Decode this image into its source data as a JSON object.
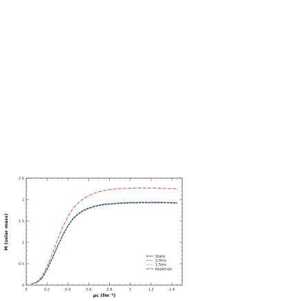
{
  "chart_data": {
    "type": "line",
    "xlabel": "ρc (fm⁻³)",
    "ylabel": "M (solar mass)",
    "xlim": [
      0,
      1.5
    ],
    "ylim": [
      0,
      2.5
    ],
    "xticks": [
      "0",
      "0.2",
      "0.4",
      "0.6",
      "0.8",
      "1",
      "1.2",
      "1.4"
    ],
    "yticks": [
      "0",
      "0.5",
      "1",
      "1.5",
      "2",
      "2.5"
    ],
    "grid": false,
    "legend_position": "bottom-right",
    "series": [
      {
        "name": "Static",
        "color": "#1a1a1a",
        "dash": "3,1.5",
        "x": [
          0.05,
          0.1,
          0.15,
          0.2,
          0.25,
          0.3,
          0.35,
          0.4,
          0.45,
          0.5,
          0.55,
          0.6,
          0.65,
          0.7,
          0.75,
          0.8,
          0.85,
          0.9,
          0.95,
          1.0,
          1.05,
          1.1,
          1.15,
          1.2,
          1.25,
          1.3,
          1.35,
          1.4,
          1.45
        ],
        "y": [
          0.03,
          0.06,
          0.16,
          0.36,
          0.62,
          0.9,
          1.16,
          1.38,
          1.55,
          1.66,
          1.74,
          1.79,
          1.83,
          1.86,
          1.88,
          1.89,
          1.9,
          1.91,
          1.915,
          1.92,
          1.92,
          1.925,
          1.925,
          1.925,
          1.925,
          1.925,
          1.925,
          1.92,
          1.915
        ]
      },
      {
        "name": "2.0ms",
        "color": "#1f3d99",
        "dash": "1.2,1.2",
        "x": [
          0.05,
          0.1,
          0.15,
          0.2,
          0.25,
          0.3,
          0.35,
          0.4,
          0.45,
          0.5,
          0.55,
          0.6,
          0.65,
          0.7,
          0.75,
          0.8,
          0.85,
          0.9,
          0.95,
          1.0,
          1.05,
          1.1,
          1.15,
          1.2,
          1.25,
          1.3,
          1.35,
          1.4,
          1.45
        ],
        "y": [
          0.03,
          0.06,
          0.16,
          0.37,
          0.63,
          0.91,
          1.17,
          1.39,
          1.56,
          1.67,
          1.75,
          1.8,
          1.84,
          1.87,
          1.89,
          1.9,
          1.91,
          1.92,
          1.925,
          1.93,
          1.93,
          1.935,
          1.935,
          1.935,
          1.935,
          1.935,
          1.93,
          1.93,
          1.925
        ]
      },
      {
        "name": "1.5ms",
        "color": "#3a9ad9",
        "dash": "0.8,1.4",
        "x": [
          0.05,
          0.1,
          0.15,
          0.2,
          0.25,
          0.3,
          0.35,
          0.4,
          0.45,
          0.5,
          0.55,
          0.6,
          0.65,
          0.7,
          0.75,
          0.8,
          0.85,
          0.9,
          0.95,
          1.0,
          1.05,
          1.1,
          1.15,
          1.2,
          1.25,
          1.3,
          1.35,
          1.4,
          1.45
        ],
        "y": [
          0.03,
          0.06,
          0.17,
          0.38,
          0.64,
          0.92,
          1.18,
          1.4,
          1.57,
          1.68,
          1.76,
          1.81,
          1.85,
          1.88,
          1.9,
          1.91,
          1.92,
          1.93,
          1.935,
          1.94,
          1.94,
          1.945,
          1.945,
          1.945,
          1.945,
          1.945,
          1.94,
          1.94,
          1.935
        ]
      },
      {
        "name": "Keplerian",
        "color": "#d62828",
        "dash": "4,1.2,0.8,1.2",
        "x": [
          0.05,
          0.1,
          0.15,
          0.2,
          0.25,
          0.3,
          0.35,
          0.4,
          0.45,
          0.5,
          0.55,
          0.6,
          0.65,
          0.7,
          0.75,
          0.8,
          0.85,
          0.9,
          0.95,
          1.0,
          1.05,
          1.1,
          1.15,
          1.2,
          1.25,
          1.3,
          1.35,
          1.4,
          1.45
        ],
        "y": [
          0.03,
          0.07,
          0.19,
          0.43,
          0.73,
          1.05,
          1.35,
          1.6,
          1.79,
          1.92,
          2.02,
          2.09,
          2.14,
          2.18,
          2.21,
          2.23,
          2.245,
          2.255,
          2.26,
          2.265,
          2.27,
          2.27,
          2.27,
          2.27,
          2.27,
          2.265,
          2.26,
          2.255,
          2.25
        ]
      }
    ]
  }
}
